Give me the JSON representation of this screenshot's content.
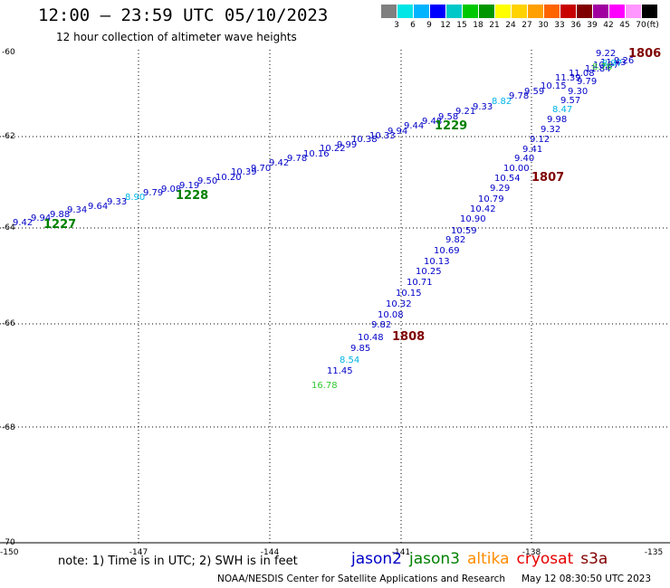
{
  "header": {
    "title": "12:00 – 23:59 UTC 05/10/2023",
    "subtitle": "12 hour collection of altimeter wave heights"
  },
  "color_scale": {
    "labels": [
      "3",
      "6",
      "9",
      "12",
      "15",
      "18",
      "21",
      "24",
      "27",
      "30",
      "33",
      "36",
      "39",
      "42",
      "45",
      "70",
      "(ft)"
    ],
    "colors": [
      "#808080",
      "#00e5e5",
      "#00b4ff",
      "#0000ff",
      "#00c8c8",
      "#00c800",
      "#009600",
      "#ffff00",
      "#ffd200",
      "#ffa000",
      "#ff6400",
      "#c80000",
      "#800000",
      "#a000a0",
      "#ff00ff",
      "#ff96ff",
      "#000000"
    ]
  },
  "axes": {
    "x_ticks": [
      "-150",
      "-147",
      "-144",
      "-141",
      "-138",
      "-135"
    ],
    "y_ticks": [
      "-60",
      "-62",
      "-64",
      "-66",
      "-68",
      "-70"
    ]
  },
  "colors": {
    "jason2": "#0000c8",
    "jason3": "#008000",
    "cyan": "#00b4e6",
    "green_light": "#32c832",
    "cryosat": "#800000"
  },
  "tracks": {
    "track1": {
      "values": [
        "9.42",
        "9.94",
        "9.88",
        "9.34",
        "9.64",
        "9.33",
        "8.90",
        "9.79",
        "9.08",
        "9.19",
        "9.50",
        "10.20",
        "10.39",
        "9.70",
        "9.42",
        "9.78",
        "10.16",
        "10.22",
        "9.99",
        "10.38",
        "10.33",
        "9.94",
        "9.44",
        "9.48",
        "9.58",
        "9.21",
        "9.33",
        "8.82",
        "9.78",
        "9.59",
        "10.15",
        "11.39",
        "11.08",
        "11.84",
        "10.97",
        "11.43",
        "9.22"
      ],
      "time_labels": [
        "1227",
        "1228",
        "1229"
      ]
    },
    "track2": {
      "values": [
        "9.26",
        "8.97",
        "8.76",
        "9.79",
        "9.30",
        "9.57",
        "8.47",
        "9.98",
        "9.32",
        "9.12",
        "9.41",
        "9.40",
        "10.00",
        "10.54",
        "9.29",
        "10.79",
        "10.42",
        "10.90",
        "10.59",
        "9.82",
        "10.69",
        "10.13",
        "10.25",
        "10.71",
        "10.15",
        "10.32",
        "10.08",
        "9.82",
        "10.48",
        "9.85",
        "8.54",
        "11.45",
        "16.78"
      ],
      "time_labels": [
        "1806",
        "1807",
        "1808"
      ]
    }
  },
  "footer": {
    "note": "note: 1) Time is in UTC; 2) SWH is in feet",
    "satellites": [
      {
        "name": "jason2",
        "color": "#0000c8"
      },
      {
        "name": "jason3",
        "color": "#008000"
      },
      {
        "name": "altika",
        "color": "#ff8c00"
      },
      {
        "name": "cryosat",
        "color": "#e60000"
      },
      {
        "name": "s3a",
        "color": "#800000"
      }
    ],
    "credit": "NOAA/NESDIS Center for Satellite Applications and Research",
    "timestamp": "May 12 08:30:50 UTC 2023"
  }
}
